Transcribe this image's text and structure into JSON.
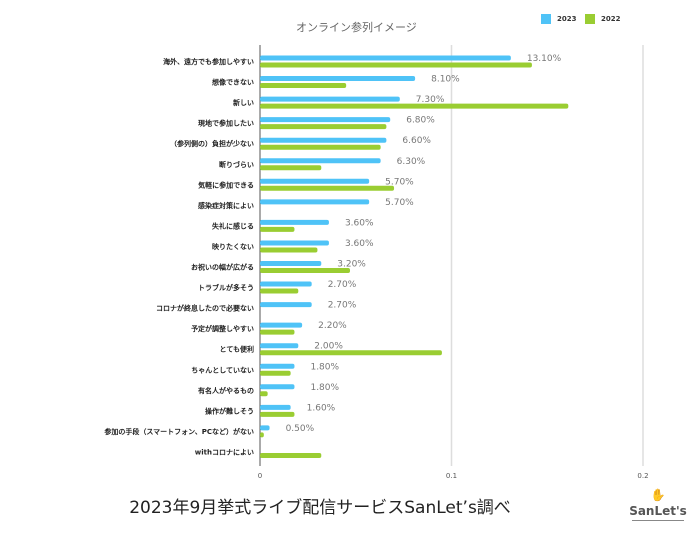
{
  "chart_data": {
    "type": "bar",
    "orientation": "horizontal",
    "title": "オンライン参列イメージ",
    "categories": [
      "海外、遠方でも参加しやすい",
      "想像できない",
      "新しい",
      "現地で参加したい",
      "（参列側の）負担が少ない",
      "断りづらい",
      "気軽に参加できる",
      "感染症対策によい",
      "失礼に感じる",
      "映りたくない",
      "お祝いの幅が広がる",
      "トラブルが多そう",
      "コロナが終息したので必要ない",
      "予定が調整しやすい",
      "とても便利",
      "ちゃんとしていない",
      "有名人がやるもの",
      "操作が難しそう",
      "参加の手段（スマートフォン、PCなど）がない",
      "withコロナによい"
    ],
    "series": [
      {
        "name": "2023",
        "color": "#4fc3f7",
        "values": [
          0.131,
          0.081,
          0.073,
          0.068,
          0.066,
          0.063,
          0.057,
          0.057,
          0.036,
          0.036,
          0.032,
          0.027,
          0.027,
          0.022,
          0.02,
          0.018,
          0.018,
          0.016,
          0.005,
          null
        ],
        "data_labels": [
          "13.10%",
          "8.10%",
          "7.30%",
          "6.80%",
          "6.60%",
          "6.30%",
          "5.70%",
          "5.70%",
          "3.60%",
          "3.60%",
          "3.20%",
          "2.70%",
          "2.70%",
          "2.20%",
          "2.00%",
          "1.80%",
          "1.80%",
          "1.60%",
          "0.50%",
          ""
        ]
      },
      {
        "name": "2022",
        "color": "#9acd32",
        "values": [
          0.142,
          0.045,
          0.161,
          0.066,
          0.063,
          0.032,
          0.07,
          null,
          0.018,
          0.03,
          0.047,
          0.02,
          null,
          0.018,
          0.095,
          0.016,
          0.004,
          0.018,
          0.002,
          0.032
        ]
      }
    ],
    "xlim": [
      0,
      0.2
    ],
    "xticks": [
      "0",
      "0.1",
      "0.2"
    ],
    "grid": true,
    "legend_position": "top-right"
  },
  "footer": "2023年9月挙式ライブ配信サービスSanLet’s調べ",
  "logo": {
    "text": "SanLet's",
    "sub": "サンレッツ"
  }
}
